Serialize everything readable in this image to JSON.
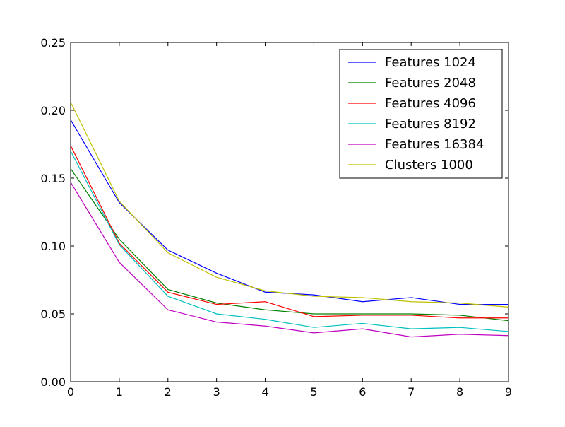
{
  "chart_data": {
    "type": "line",
    "title": "",
    "xlabel": "",
    "ylabel": "",
    "x": [
      0,
      1,
      2,
      3,
      4,
      5,
      6,
      7,
      8,
      9
    ],
    "xlim": [
      0,
      9
    ],
    "ylim": [
      0,
      0.25
    ],
    "xticks": [
      "0",
      "1",
      "2",
      "3",
      "4",
      "5",
      "6",
      "7",
      "8",
      "9"
    ],
    "yticks": [
      "0.00",
      "0.05",
      "0.10",
      "0.15",
      "0.20",
      "0.25"
    ],
    "ytick_values": [
      0,
      0.05,
      0.1,
      0.15,
      0.2,
      0.25
    ],
    "grid": false,
    "legend_position": "top-right",
    "series": [
      {
        "name": "Features 1024",
        "color": "#0000ff",
        "values": [
          0.193,
          0.132,
          0.097,
          0.08,
          0.066,
          0.064,
          0.059,
          0.062,
          0.057,
          0.057
        ]
      },
      {
        "name": "Features 2048",
        "color": "#008000",
        "values": [
          0.157,
          0.105,
          0.068,
          0.058,
          0.053,
          0.05,
          0.05,
          0.05,
          0.049,
          0.045
        ]
      },
      {
        "name": "Features 4096",
        "color": "#ff0000",
        "values": [
          0.174,
          0.102,
          0.066,
          0.057,
          0.059,
          0.048,
          0.049,
          0.049,
          0.047,
          0.047
        ]
      },
      {
        "name": "Features 8192",
        "color": "#00bfbf",
        "values": [
          0.17,
          0.101,
          0.063,
          0.05,
          0.046,
          0.04,
          0.043,
          0.039,
          0.04,
          0.037
        ]
      },
      {
        "name": "Features 16384",
        "color": "#bf00bf",
        "values": [
          0.147,
          0.088,
          0.053,
          0.044,
          0.041,
          0.036,
          0.039,
          0.033,
          0.035,
          0.034
        ]
      },
      {
        "name": "Clusters 1000",
        "color": "#bfbf00",
        "values": [
          0.206,
          0.133,
          0.095,
          0.077,
          0.067,
          0.063,
          0.062,
          0.059,
          0.058,
          0.055
        ]
      }
    ]
  }
}
